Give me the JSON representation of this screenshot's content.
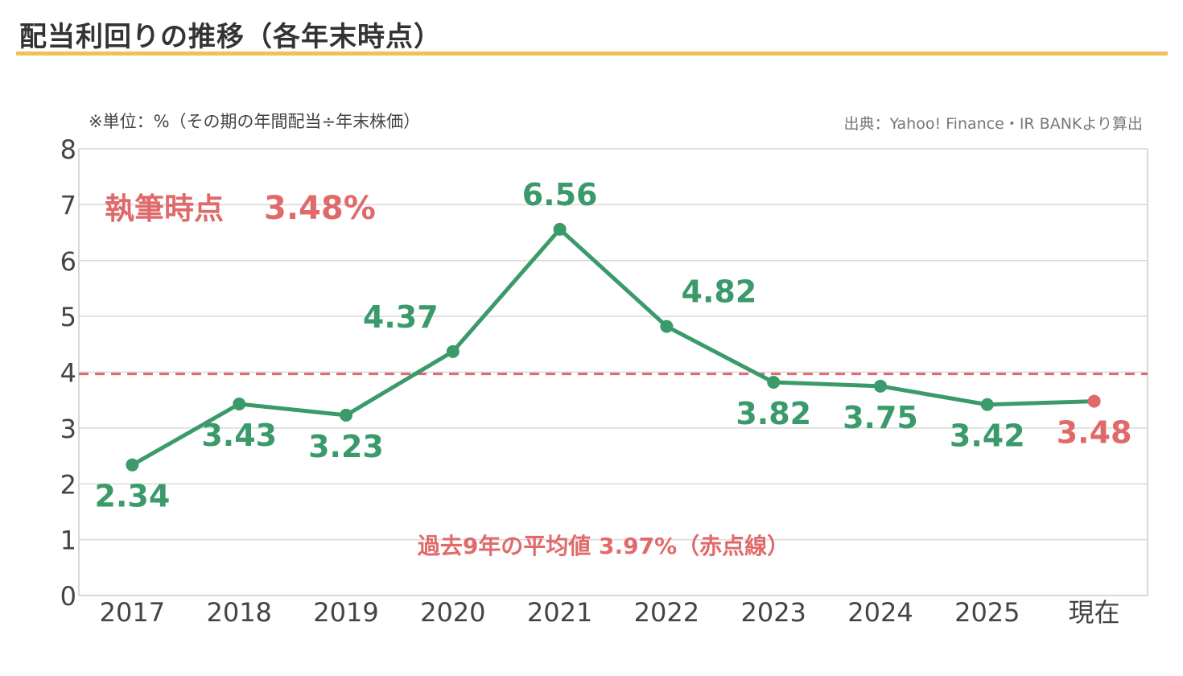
{
  "title": "配当利回りの推移（各年末時点）",
  "unit_note": "※単位：%（その期の年間配当÷年末株価）",
  "source_note": "出典：Yahoo! Finance・IR BANKより算出",
  "colors": {
    "accent_rule": "#f0c060",
    "series": "#3a9a6a",
    "current": "#e06a6a",
    "grid": "#d9d9d9"
  },
  "chart_data": {
    "type": "line",
    "categories": [
      "2017",
      "2018",
      "2019",
      "2020",
      "2021",
      "2022",
      "2023",
      "2024",
      "2025",
      "現在"
    ],
    "series": [
      {
        "values": [
          2.34,
          3.43,
          3.23,
          4.37,
          6.56,
          4.82,
          3.82,
          3.75,
          3.42,
          3.48
        ]
      }
    ],
    "data_labels": [
      "2.34",
      "3.43",
      "3.23",
      "4.37",
      "6.56",
      "4.82",
      "3.82",
      "3.75",
      "3.42",
      "3.48"
    ],
    "ylim": [
      0,
      8
    ],
    "yticks": [
      "0",
      "1",
      "2",
      "3",
      "4",
      "5",
      "6",
      "7",
      "8"
    ],
    "average": {
      "value": 3.97,
      "label": "過去9年の平均値 3.97%（赤点線）"
    },
    "current_note": {
      "label": "執筆時点",
      "value": "3.48%"
    },
    "grid": true
  }
}
